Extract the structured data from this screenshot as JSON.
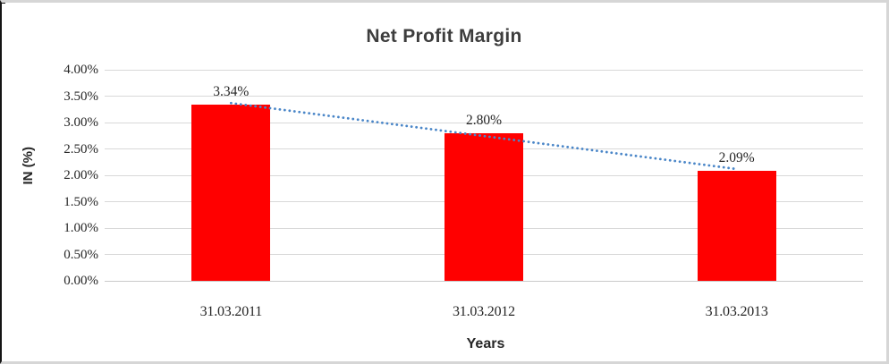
{
  "chart_data": {
    "type": "bar",
    "title": "Net Profit Margin",
    "xlabel": "Years",
    "ylabel": "IN (%)",
    "categories": [
      "31.03.2011",
      "31.03.2012",
      "31.03.2013"
    ],
    "values": [
      3.34,
      2.8,
      2.09
    ],
    "data_labels": [
      "3.34%",
      "2.80%",
      "2.09%"
    ],
    "ylim": [
      0,
      4
    ],
    "ytick_step": 0.5,
    "yticks": [
      "0.00%",
      "0.50%",
      "1.00%",
      "1.50%",
      "2.00%",
      "2.50%",
      "3.00%",
      "3.50%",
      "4.00%"
    ],
    "grid": true,
    "legend": "none",
    "bar_color": "#ff0000",
    "gridline_color": "#d9d9d9",
    "trendline": {
      "type": "linear",
      "style": "dotted",
      "color": "#4a86c8"
    }
  }
}
